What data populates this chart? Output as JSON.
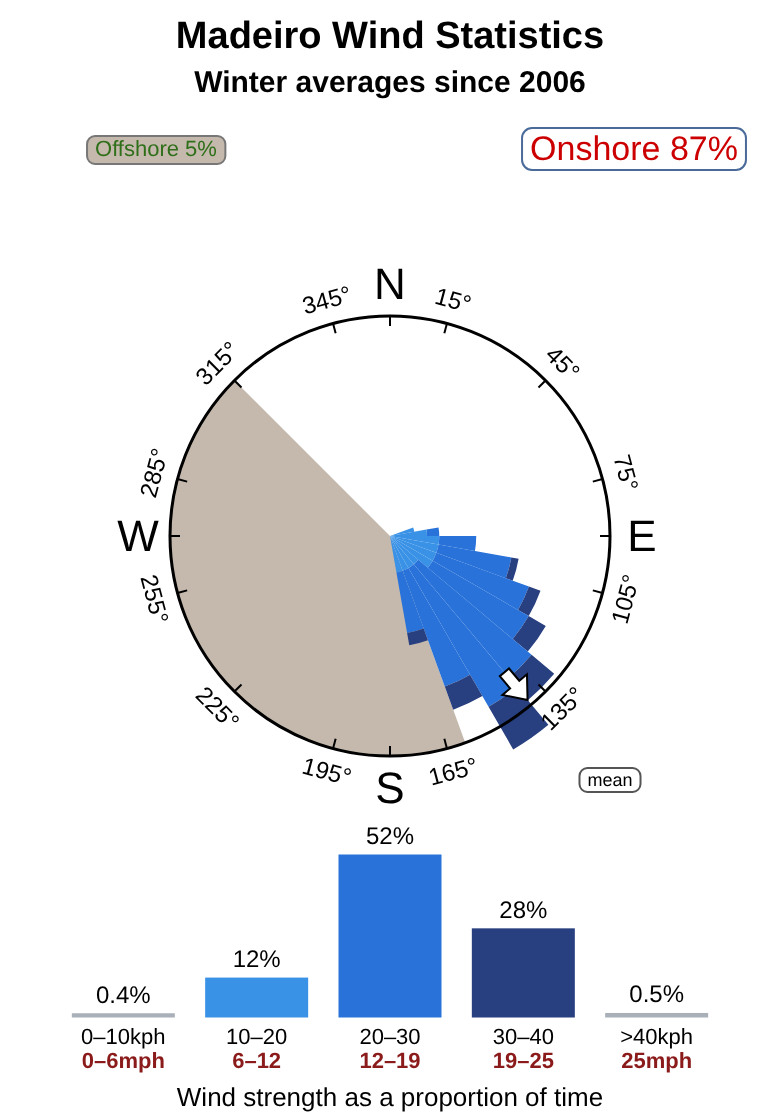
{
  "chart_data": [
    {
      "type": "other",
      "title": "Madeiro Wind Statistics",
      "subtitle": "Winter averages since 2006",
      "annotations": [
        "Offshore 5%",
        "Onshore 87%",
        "N",
        "15°",
        "45°",
        "75°",
        "E",
        "105°",
        "135°",
        "165°",
        "S",
        "195°",
        "225°",
        "255°",
        "W",
        "285°",
        "315°",
        "345°",
        "mean"
      ]
    },
    {
      "type": "bar",
      "categories": [
        "0–10kph\n0–6mph",
        "10–20\n6–12",
        "20–30\n12–19",
        "30–40\n19–25",
        ">40kph\n25mph"
      ],
      "values": [
        0.4,
        12,
        52,
        28,
        0.5
      ],
      "colors": [
        "#a9b0b7",
        "#3a92e6",
        "#2872d9",
        "#283f80",
        "#a9b0b7"
      ],
      "value_labels": [
        "0.4%",
        "12%",
        "52%",
        "28%",
        "0.5%"
      ],
      "xlabel": "Wind strength as a proportion of time"
    }
  ]
}
